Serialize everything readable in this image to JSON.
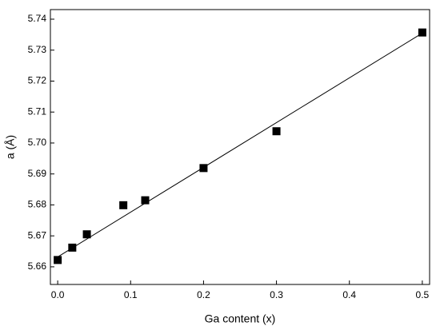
{
  "chart_data": {
    "type": "scatter",
    "x_label": "Ga content (x)",
    "y_label": "a (Å)",
    "x": [
      0,
      0.02,
      0.04,
      0.09,
      0.12,
      0.2,
      0.3,
      0.5
    ],
    "values": [
      5.6622,
      5.6662,
      5.6705,
      5.6799,
      5.6815,
      5.6919,
      5.7038,
      5.7357
    ],
    "color": "#000000",
    "fit_line": {
      "x": [
        0,
        0.5
      ],
      "values": [
        5.6632,
        5.7355
      ],
      "color": "#000000"
    },
    "xlim": [
      -0.01,
      0.51
    ],
    "xticks": [
      {
        "value": 0,
        "label": "0.0"
      },
      0.1,
      0.2,
      0.3,
      0.4,
      0.5
    ],
    "ylim": [
      5.6543,
      5.7431
    ],
    "yticks": [
      5.66,
      5.67,
      5.68,
      5.69,
      {
        "value": 5.7,
        "label": "5.70"
      },
      5.71,
      5.72,
      5.73,
      5.74
    ],
    "grid": false
  }
}
